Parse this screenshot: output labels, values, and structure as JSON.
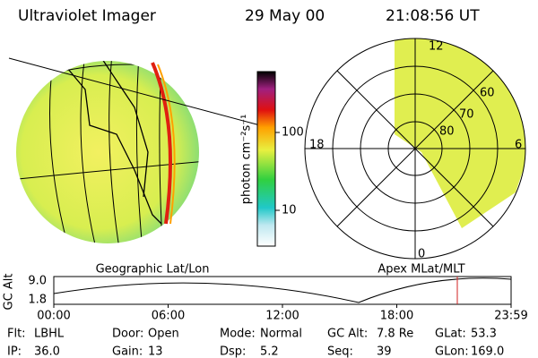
{
  "header": {
    "title": "Ultraviolet Imager",
    "date": "29 May 00",
    "time": "21:08:56 UT"
  },
  "colorbar": {
    "label": "photon cm⁻²s⁻¹",
    "ticks": [
      "100",
      "10"
    ]
  },
  "polar": {
    "labels": [
      "12",
      "60",
      "70",
      "80",
      "18",
      "6",
      "0"
    ]
  },
  "maps": {
    "left": "Geographic Lat/Lon",
    "right": "Apex MLat/MLT"
  },
  "timeline": {
    "y_label": "GC Alt",
    "yticks": [
      "9.0",
      "1.8"
    ],
    "xticks": [
      "00:00",
      "06:00",
      "12:00",
      "18:00",
      "23:59"
    ]
  },
  "info": [
    [
      {
        "label": "Flt:",
        "value": "LBHL"
      },
      {
        "label": "Door:",
        "value": "Open"
      },
      {
        "label": "Mode:",
        "value": "Normal"
      },
      {
        "label": "GC Alt:",
        "value": "7.8 Re"
      },
      {
        "label": "GLat:",
        "value": "53.3"
      }
    ],
    [
      {
        "label": "IP:",
        "value": "36.0"
      },
      {
        "label": "Gain:",
        "value": "13"
      },
      {
        "label": "Dsp:",
        "value": "5.2"
      },
      {
        "label": "Seq:",
        "value": "39"
      },
      {
        "label": "GLon:",
        "value": "169.0"
      }
    ]
  ]
}
